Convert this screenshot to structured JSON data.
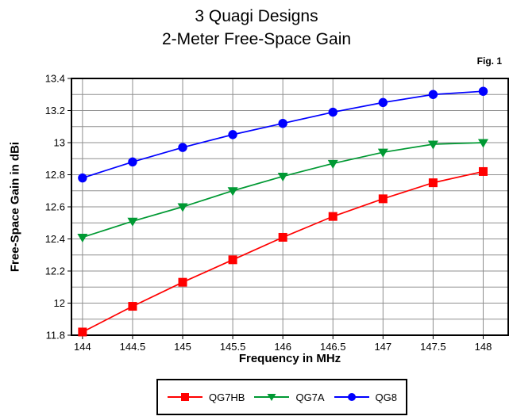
{
  "title_line1": "3 Quagi Designs",
  "title_line2": "2-Meter Free-Space Gain",
  "fig_label": "Fig. 1",
  "chart_data": {
    "type": "line",
    "title": "3 Quagi Designs",
    "subtitle": "2-Meter Free-Space Gain",
    "xlabel": "Frequency in MHz",
    "ylabel": "Free-Space Gain in dBi",
    "x": [
      144,
      144.5,
      145,
      145.5,
      146,
      146.5,
      147,
      147.5,
      148
    ],
    "series": [
      {
        "name": "QG7HB",
        "color": "#ff0000",
        "marker": "square",
        "values": [
          11.82,
          11.98,
          12.13,
          12.27,
          12.41,
          12.54,
          12.65,
          12.75,
          12.82
        ]
      },
      {
        "name": "QG7A",
        "color": "#009933",
        "marker": "triangle-down",
        "values": [
          12.41,
          12.51,
          12.6,
          12.7,
          12.79,
          12.87,
          12.94,
          12.99,
          13.0
        ]
      },
      {
        "name": "QG8",
        "color": "#0000ff",
        "marker": "circle",
        "values": [
          12.78,
          12.88,
          12.97,
          13.05,
          13.12,
          13.19,
          13.25,
          13.3,
          13.32
        ]
      }
    ],
    "xlim": [
      143.89,
      148.25
    ],
    "ylim": [
      11.8,
      13.4
    ],
    "x_ticks": [
      144,
      144.5,
      145,
      145.5,
      146,
      146.5,
      147,
      147.5,
      148
    ],
    "y_major_ticks": [
      11.8,
      12,
      12.2,
      12.4,
      12.6,
      12.8,
      13,
      13.2,
      13.4
    ],
    "y_minor_step": 0.1,
    "grid": true,
    "grid_color": "#8f8f8f",
    "axis_color": "#000000",
    "legend_position": "bottom"
  }
}
